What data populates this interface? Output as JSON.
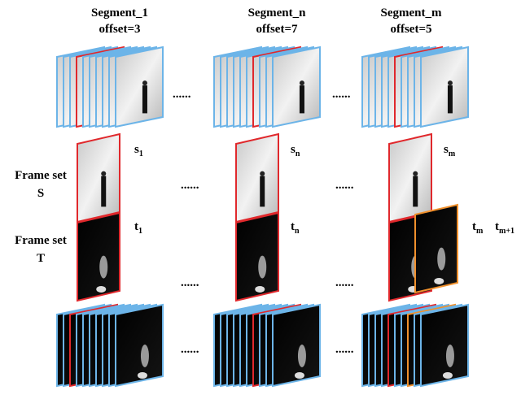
{
  "columns": [
    {
      "segment": "Segment_1",
      "offset": "offset=3",
      "s": {
        "base": "s",
        "sub": "1"
      },
      "t": {
        "base": "t",
        "sub": "1"
      }
    },
    {
      "segment": "Segment_n",
      "offset": "offset=7",
      "s": {
        "base": "s",
        "sub": "n"
      },
      "t": {
        "base": "t",
        "sub": "n"
      }
    },
    {
      "segment": "Segment_m",
      "offset": "offset=5",
      "s": {
        "base": "s",
        "sub": "m"
      },
      "t": {
        "base": "t",
        "sub": "m"
      },
      "t_extra": {
        "base": "t",
        "sub": "m+1"
      }
    }
  ],
  "rows": [
    {
      "label": "Frame set",
      "letter": "S"
    },
    {
      "label": "Frame set",
      "letter": "T"
    }
  ],
  "separators": [
    "......",
    "......",
    "......",
    "......",
    "......",
    "......",
    "......",
    "......"
  ]
}
